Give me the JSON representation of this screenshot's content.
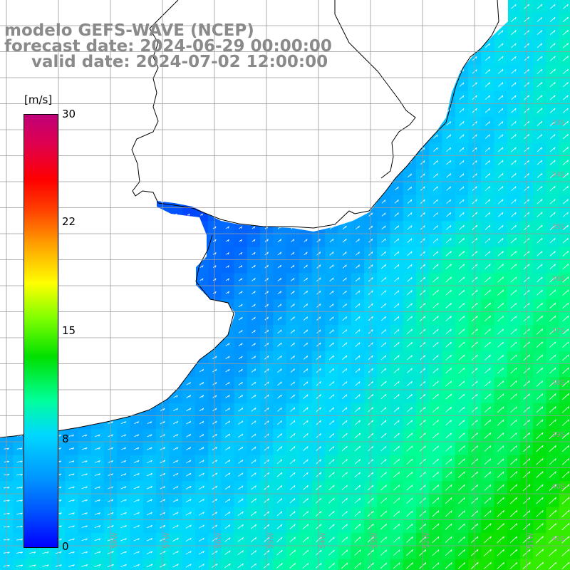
{
  "title": {
    "line1": "modelo GEFS-WAVE (NCEP)",
    "line2": "forecast date: 2024-06-29 00:00:00",
    "line3": "valid date: 2024-07-02 12:00:00"
  },
  "colorbar": {
    "unit": "[m/s]",
    "min": 0,
    "max": 30,
    "ticks": [
      {
        "value": 30,
        "label": "30"
      },
      {
        "value": 22,
        "label": "22"
      },
      {
        "value": 15,
        "label": "15"
      },
      {
        "value": 8,
        "label": "8"
      },
      {
        "value": 0,
        "label": "0"
      }
    ],
    "colors": [
      "#0000ff",
      "#0050ff",
      "#0096ff",
      "#00d8ff",
      "#00ff9a",
      "#00e000",
      "#80ff00",
      "#ffff00",
      "#ffa000",
      "#ff4000",
      "#ff0000",
      "#e0004c",
      "#c0007a"
    ]
  },
  "map": {
    "variable": "wind speed",
    "land_color": "#ffffff",
    "coast_color": "#000000",
    "grid_color": "#9a9a9a",
    "lat_labels": [
      "33S",
      "34S",
      "35S",
      "36S",
      "37S",
      "38S",
      "39S",
      "40S",
      "41S"
    ],
    "lon_labels": [
      "58W",
      "57W",
      "56W",
      "55W",
      "54W",
      "53W",
      "52W",
      "51W"
    ]
  }
}
